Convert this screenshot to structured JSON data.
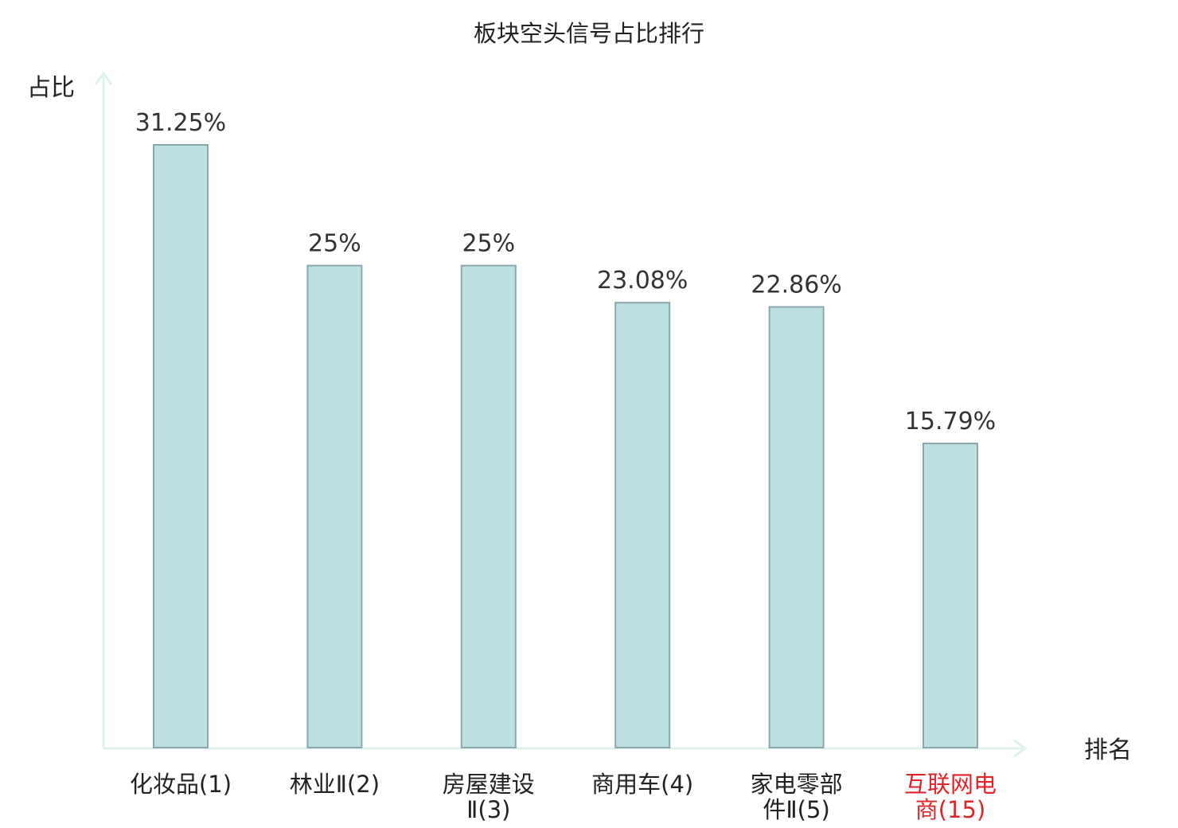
{
  "chart_data": {
    "type": "bar",
    "title": "板块空头信号占比排行",
    "xlabel": "排名",
    "ylabel": "占比",
    "categories": [
      {
        "name": "化妆品",
        "rank": "(1)",
        "lines": [
          "化妆品(1)"
        ],
        "highlight": false
      },
      {
        "name": "林业Ⅱ",
        "rank": "(2)",
        "lines": [
          "林业Ⅱ(2)"
        ],
        "highlight": false
      },
      {
        "name": "房屋建设Ⅱ",
        "rank": "(3)",
        "lines": [
          "房屋建设",
          "Ⅱ(3)"
        ],
        "highlight": false
      },
      {
        "name": "商用车",
        "rank": "(4)",
        "lines": [
          "商用车(4)"
        ],
        "highlight": false
      },
      {
        "name": "家电零部件Ⅱ",
        "rank": "(5)",
        "lines": [
          "家电零部",
          "件Ⅱ(5)"
        ],
        "highlight": false
      },
      {
        "name": "互联网电商",
        "rank": "(15)",
        "lines": [
          "互联网电",
          "商(15)"
        ],
        "highlight": true
      }
    ],
    "values": [
      31.25,
      25,
      25,
      23.08,
      22.86,
      15.79
    ],
    "value_labels": [
      "31.25%",
      "25%",
      "25%",
      "23.08%",
      "22.86%",
      "15.79%"
    ],
    "ylim": [
      0,
      31.25
    ],
    "grid": false,
    "legend": "none"
  },
  "colors": {
    "bar_fill": "#bde0e3",
    "bar_stroke": "#8aa8ab",
    "axis": "#dff1ee",
    "label_text": "#222222",
    "value_text": "#333333",
    "highlight_text": "#e0242a"
  }
}
